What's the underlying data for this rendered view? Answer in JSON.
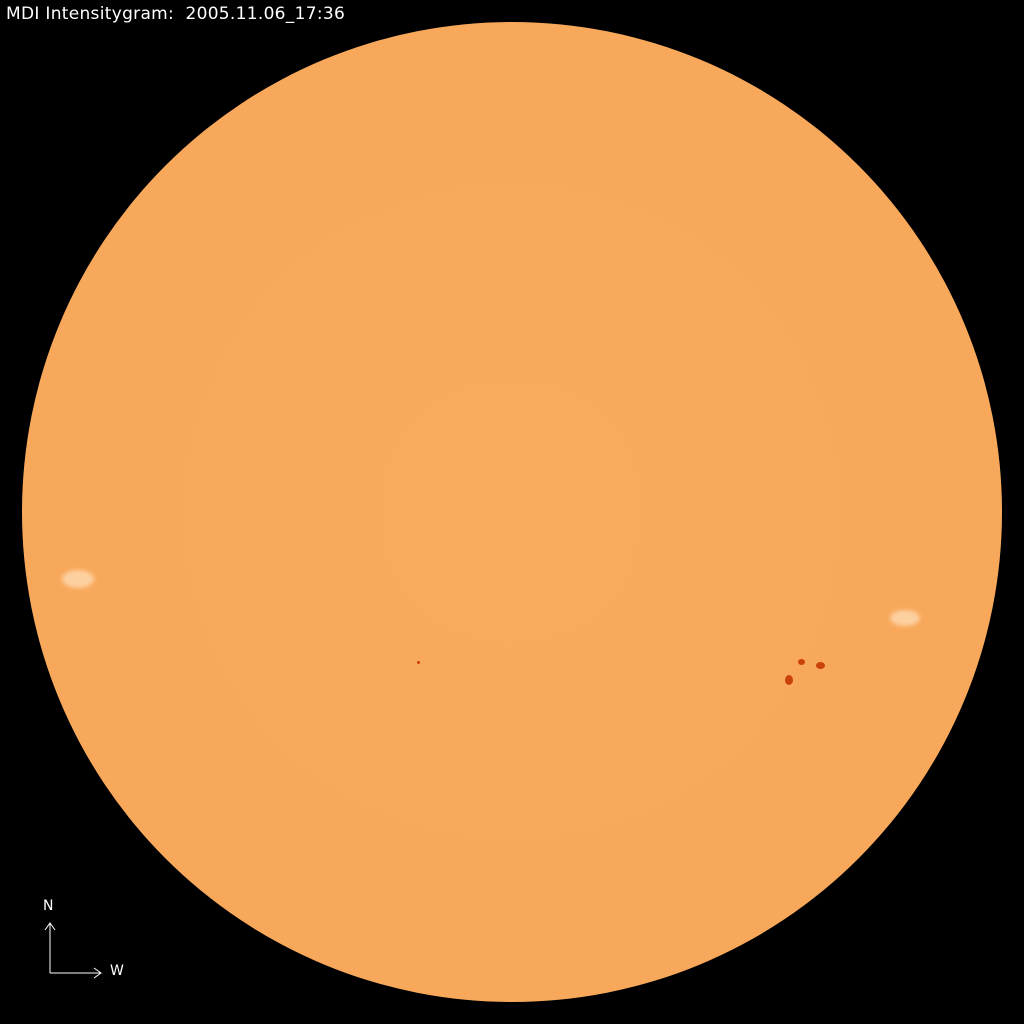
{
  "title": "MDI Intensitygram:  2005.11.06_17:36",
  "compass": {
    "north": "N",
    "west": "W"
  },
  "colors": {
    "background": "#000000",
    "disk": "#f9a95a",
    "sunspot": "#c8420a",
    "text": "#ffffff"
  }
}
